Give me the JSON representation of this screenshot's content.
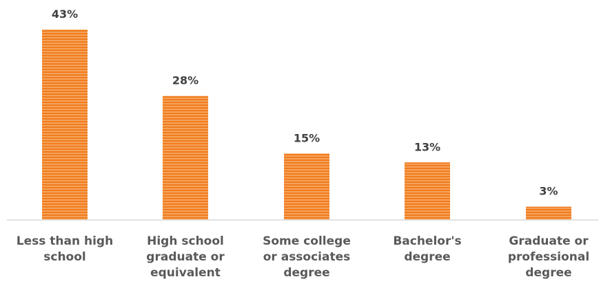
{
  "chart_data": {
    "type": "bar",
    "title": "",
    "xlabel": "",
    "ylabel": "",
    "ylim": [
      0,
      43
    ],
    "grid": false,
    "legend": "none",
    "categories": [
      [
        "Less than high",
        "school"
      ],
      [
        "High school",
        "graduate or",
        "equivalent"
      ],
      [
        "Some college",
        "or associates",
        "degree"
      ],
      [
        "Bachelor's",
        "degree"
      ],
      [
        "Graduate or",
        "professional",
        "degree"
      ]
    ],
    "values": [
      43,
      28,
      15,
      13,
      3
    ],
    "value_labels": [
      "43%",
      "28%",
      "15%",
      "13%",
      "3%"
    ],
    "colors": {
      "bar_fill": "#f5a35a",
      "bar_stripe": "#f07b1e",
      "value_text": "#404040",
      "category_text": "#595959",
      "axis": "#d9d9d9"
    }
  }
}
